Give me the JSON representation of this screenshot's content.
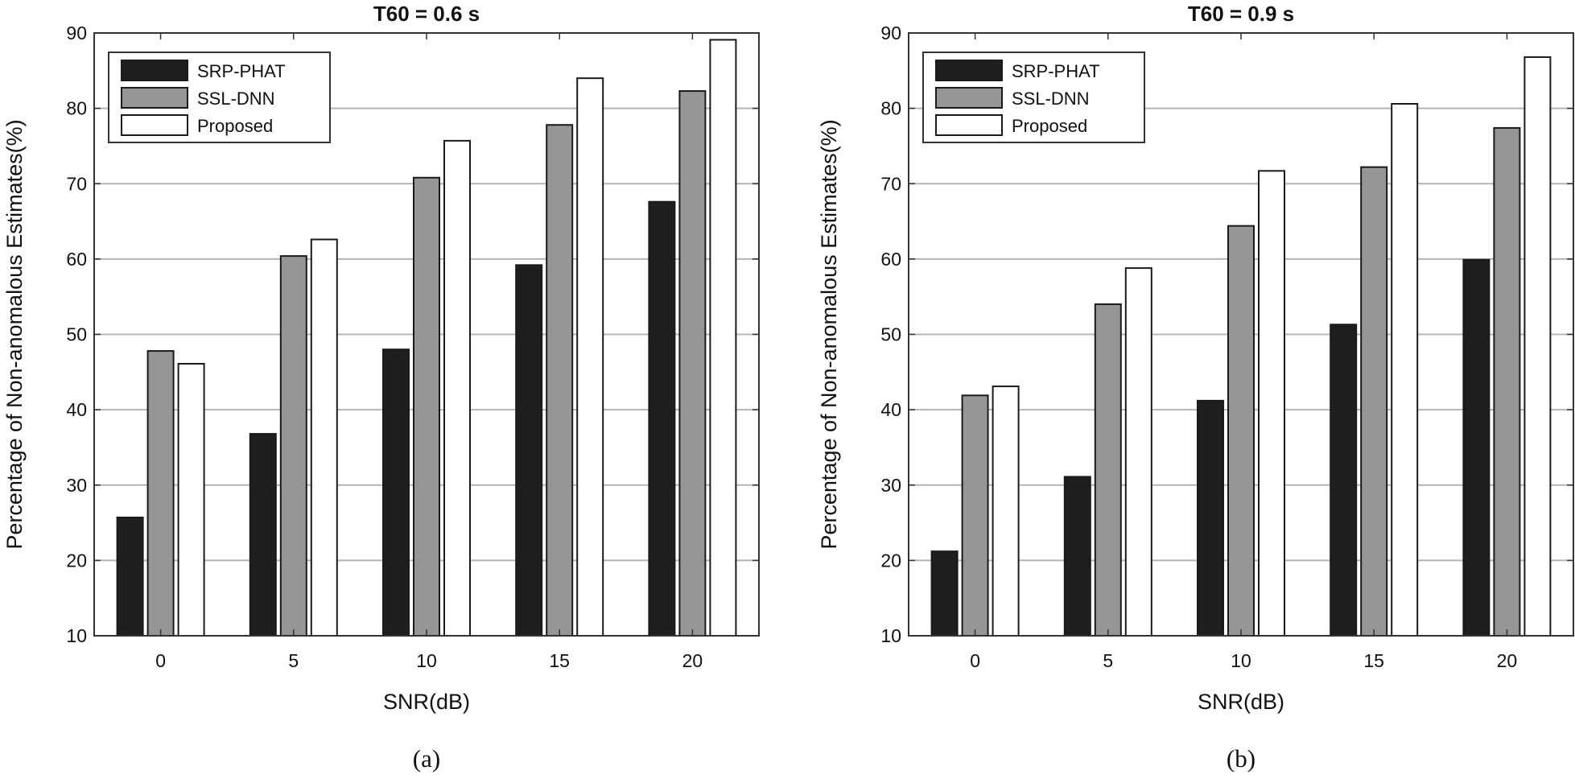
{
  "figure": {
    "panels": [
      {
        "caption": "(a)",
        "chart_data": {
          "type": "bar",
          "title": "T60 = 0.6 s",
          "xlabel": "SNR(dB)",
          "ylabel": "Percentage of Non-anomalous Estimates(%)",
          "categories": [
            "0",
            "5",
            "10",
            "15",
            "20"
          ],
          "ylim": [
            10,
            90
          ],
          "yticks": [
            10,
            20,
            30,
            40,
            50,
            60,
            70,
            80,
            90
          ],
          "grid": "horizontal",
          "legend_position": "top-left",
          "series": [
            {
              "name": "SRP-PHAT",
              "color": "#1e1e1e",
              "values": [
                25.7,
                36.8,
                48.0,
                59.2,
                67.6
              ]
            },
            {
              "name": "SSL-DNN",
              "color": "#969696",
              "values": [
                47.8,
                60.4,
                70.8,
                77.8,
                82.3
              ]
            },
            {
              "name": "Proposed",
              "color": "#ffffff",
              "values": [
                46.1,
                62.6,
                75.7,
                84.0,
                89.1
              ]
            }
          ]
        }
      },
      {
        "caption": "(b)",
        "chart_data": {
          "type": "bar",
          "title": "T60 = 0.9 s",
          "xlabel": "SNR(dB)",
          "ylabel": "Percentage of Non-anomalous Estimates(%)",
          "categories": [
            "0",
            "5",
            "10",
            "15",
            "20"
          ],
          "ylim": [
            10,
            90
          ],
          "yticks": [
            10,
            20,
            30,
            40,
            50,
            60,
            70,
            80,
            90
          ],
          "grid": "horizontal",
          "legend_position": "top-left",
          "series": [
            {
              "name": "SRP-PHAT",
              "color": "#1e1e1e",
              "values": [
                21.2,
                31.1,
                41.2,
                51.3,
                59.9
              ]
            },
            {
              "name": "SSL-DNN",
              "color": "#969696",
              "values": [
                41.9,
                54.0,
                64.4,
                72.2,
                77.4
              ]
            },
            {
              "name": "Proposed",
              "color": "#ffffff",
              "values": [
                43.1,
                58.8,
                71.7,
                80.6,
                86.8
              ]
            }
          ]
        }
      }
    ]
  }
}
